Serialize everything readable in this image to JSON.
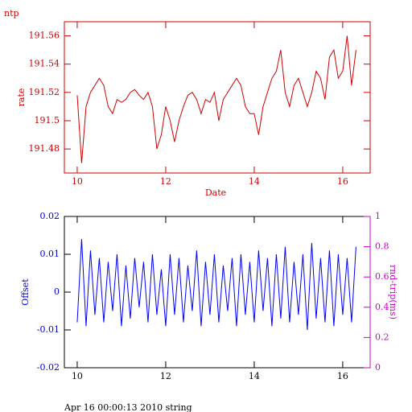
{
  "chart_data": [
    {
      "type": "line",
      "title": "ntp",
      "xlabel": "Date",
      "ylabel": "rate",
      "x": [
        10.0,
        10.1,
        10.2,
        10.3,
        10.4,
        10.5,
        10.6,
        10.7,
        10.8,
        10.9,
        11.0,
        11.1,
        11.2,
        11.3,
        11.4,
        11.5,
        11.6,
        11.7,
        11.8,
        11.9,
        12.0,
        12.1,
        12.2,
        12.3,
        12.4,
        12.5,
        12.6,
        12.7,
        12.8,
        12.9,
        13.0,
        13.1,
        13.2,
        13.3,
        13.4,
        13.5,
        13.6,
        13.7,
        13.8,
        13.9,
        14.0,
        14.1,
        14.2,
        14.3,
        14.4,
        14.5,
        14.6,
        14.7,
        14.8,
        14.9,
        15.0,
        15.1,
        15.2,
        15.3,
        15.4,
        15.5,
        15.6,
        15.7,
        15.8,
        15.9,
        16.0,
        16.1,
        16.2,
        16.3
      ],
      "series": [
        {
          "color": "#d00000",
          "values": [
            191.518,
            191.47,
            191.51,
            191.52,
            191.525,
            191.53,
            191.525,
            191.51,
            191.505,
            191.515,
            191.513,
            191.515,
            191.52,
            191.522,
            191.518,
            191.515,
            191.52,
            191.51,
            191.48,
            191.49,
            191.51,
            191.5,
            191.485,
            191.5,
            191.51,
            191.518,
            191.52,
            191.515,
            191.505,
            191.515,
            191.513,
            191.52,
            191.5,
            191.515,
            191.52,
            191.525,
            191.53,
            191.525,
            191.51,
            191.505,
            191.505,
            191.49,
            191.51,
            191.52,
            191.53,
            191.535,
            191.55,
            191.52,
            191.51,
            191.525,
            191.53,
            191.52,
            191.51,
            191.52,
            191.535,
            191.53,
            191.515,
            191.545,
            191.55,
            191.53,
            191.535,
            191.56,
            191.525,
            191.55
          ]
        }
      ],
      "xlim": [
        9.71,
        16.62
      ],
      "xticks": [
        10,
        12,
        14,
        16
      ],
      "ylim": [
        191.463,
        191.57
      ],
      "yticks": [
        191.48,
        191.5,
        191.52,
        191.54,
        191.56
      ]
    },
    {
      "type": "line",
      "ylabel": "Offset",
      "y2label": "rnd-trip(ms)",
      "x": [
        10.0,
        10.1,
        10.2,
        10.3,
        10.4,
        10.5,
        10.6,
        10.7,
        10.8,
        10.9,
        11.0,
        11.1,
        11.2,
        11.3,
        11.4,
        11.5,
        11.6,
        11.7,
        11.8,
        11.9,
        12.0,
        12.1,
        12.2,
        12.3,
        12.4,
        12.5,
        12.6,
        12.7,
        12.8,
        12.9,
        13.0,
        13.1,
        13.2,
        13.3,
        13.4,
        13.5,
        13.6,
        13.7,
        13.8,
        13.9,
        14.0,
        14.1,
        14.2,
        14.3,
        14.4,
        14.5,
        14.6,
        14.7,
        14.8,
        14.9,
        15.0,
        15.1,
        15.2,
        15.3,
        15.4,
        15.5,
        15.6,
        15.7,
        15.8,
        15.9,
        16.0,
        16.1,
        16.2,
        16.3
      ],
      "series": [
        {
          "color": "#0000ff",
          "values": [
            -0.008,
            0.014,
            -0.009,
            0.011,
            -0.006,
            0.009,
            -0.008,
            0.008,
            -0.005,
            0.01,
            -0.009,
            0.007,
            -0.007,
            0.009,
            -0.004,
            0.008,
            -0.008,
            0.01,
            -0.006,
            0.006,
            -0.009,
            0.01,
            -0.006,
            0.009,
            -0.008,
            0.007,
            -0.005,
            0.011,
            -0.009,
            0.008,
            -0.006,
            0.01,
            -0.008,
            0.007,
            -0.005,
            0.009,
            -0.009,
            0.01,
            -0.006,
            0.008,
            -0.008,
            0.011,
            -0.005,
            0.009,
            -0.009,
            0.01,
            -0.007,
            0.012,
            -0.008,
            0.008,
            -0.006,
            0.01,
            -0.01,
            0.013,
            -0.007,
            0.009,
            -0.008,
            0.011,
            -0.009,
            0.01,
            -0.006,
            0.009,
            -0.008,
            0.012
          ]
        }
      ],
      "xlim": [
        9.71,
        16.62
      ],
      "xticks": [
        10,
        12,
        14,
        16
      ],
      "ylim": [
        -0.02,
        0.02
      ],
      "yticks": [
        -0.02,
        -0.01,
        0,
        0.01,
        0.02
      ],
      "y2lim": [
        0,
        1
      ],
      "y2ticks": [
        0,
        0.2,
        0.4,
        0.6,
        0.8,
        1
      ],
      "y2color": "#cc00cc"
    }
  ],
  "footer": "Apr 16 00:00:13 2010 string"
}
